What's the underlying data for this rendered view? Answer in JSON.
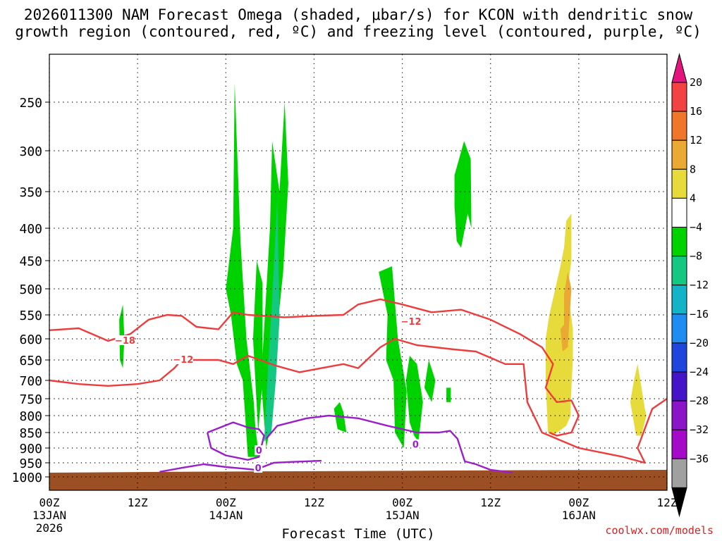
{
  "title_line1": "2026011300 NAM Forecast Omega (shaded, μbar/s) for KCON with dendritic snow",
  "title_line2": "growth region (contoured, red, ºC) and freezing level (contoured, purple, ºC)",
  "credit": "coolwx.com/models",
  "colors": {
    "terrain": "#9c4f22",
    "dgz_contour": "#ee3c3c",
    "freezing_contour": "#9a1fc8",
    "grid": "#000000"
  },
  "chart_data": {
    "type": "heatmap",
    "xlabel": "Forecast Time (UTC)",
    "x_ticks": [
      {
        "hour": 0,
        "label": "00Z",
        "sub": "13JAN",
        "sub2": "2026"
      },
      {
        "hour": 12,
        "label": "12Z",
        "sub": "",
        "sub2": ""
      },
      {
        "hour": 24,
        "label": "00Z",
        "sub": "14JAN",
        "sub2": ""
      },
      {
        "hour": 36,
        "label": "12Z",
        "sub": "",
        "sub2": ""
      },
      {
        "hour": 48,
        "label": "00Z",
        "sub": "15JAN",
        "sub2": ""
      },
      {
        "hour": 60,
        "label": "12Z",
        "sub": "",
        "sub2": ""
      },
      {
        "hour": 72,
        "label": "00Z",
        "sub": "16JAN",
        "sub2": ""
      },
      {
        "hour": 84,
        "label": "12Z",
        "sub": "",
        "sub2": ""
      }
    ],
    "xlim": [
      0,
      84
    ],
    "y_levels": [
      250,
      300,
      350,
      400,
      450,
      500,
      550,
      600,
      650,
      700,
      750,
      800,
      850,
      900,
      950,
      1000
    ],
    "ylim_hpa": [
      200,
      1012
    ],
    "colorbar": {
      "labels": [
        "20",
        "16",
        "12",
        "8",
        "4",
        "−4",
        "−8",
        "−12",
        "−16",
        "−20",
        "−24",
        "−28",
        "−32",
        "−36"
      ],
      "colors": [
        "#f24242",
        "#f0762c",
        "#eaa932",
        "#e6db3a",
        "#ffffff",
        "#00d200",
        "#14c882",
        "#14b4c8",
        "#1e8cf0",
        "#1e46dc",
        "#4614c8",
        "#8c14c8",
        "#a40ac8",
        "#a0a0a0"
      ],
      "top_arrow": "#e3147e",
      "bottom_arrow": "#000000"
    },
    "omega_regions": [
      {
        "fill": "#00d200",
        "points": [
          [
            9.5,
            560
          ],
          [
            10,
            530
          ],
          [
            10.2,
            600
          ],
          [
            10,
            670
          ],
          [
            9.6,
            650
          ]
        ]
      },
      {
        "fill": "#00d200",
        "points": [
          [
            24,
            500
          ],
          [
            25,
            400
          ],
          [
            25.2,
            230
          ],
          [
            26,
            420
          ],
          [
            26.8,
            600
          ],
          [
            27.8,
            760
          ],
          [
            28,
            830
          ],
          [
            28.5,
            930
          ],
          [
            27,
            930
          ],
          [
            26.3,
            700
          ],
          [
            25.5,
            660
          ],
          [
            24.7,
            550
          ]
        ]
      },
      {
        "fill": "#00d200",
        "points": [
          [
            27.7,
            600
          ],
          [
            28.2,
            450
          ],
          [
            29,
            490
          ],
          [
            29,
            700
          ],
          [
            28.4,
            850
          ]
        ]
      },
      {
        "fill": "#00d200",
        "points": [
          [
            28.8,
            700
          ],
          [
            30,
            400
          ],
          [
            30.3,
            290
          ],
          [
            31.3,
            350
          ],
          [
            32,
            250
          ],
          [
            32.5,
            340
          ],
          [
            31.8,
            470
          ],
          [
            31,
            580
          ],
          [
            30.5,
            700
          ],
          [
            30.2,
            820
          ],
          [
            29.5,
            900
          ]
        ]
      },
      {
        "fill": "#14c882",
        "points": [
          [
            29.2,
            880
          ],
          [
            29.8,
            650
          ],
          [
            30.3,
            520
          ],
          [
            31,
            360
          ],
          [
            31.3,
            560
          ],
          [
            30.8,
            700
          ],
          [
            30.2,
            850
          ]
        ]
      },
      {
        "fill": "#00d200",
        "points": [
          [
            38.7,
            780
          ],
          [
            39.5,
            760
          ],
          [
            40,
            790
          ],
          [
            40.4,
            850
          ],
          [
            39.2,
            840
          ]
        ]
      },
      {
        "fill": "#00d200",
        "points": [
          [
            44.8,
            470
          ],
          [
            46.6,
            460
          ],
          [
            47.4,
            600
          ],
          [
            48.6,
            730
          ],
          [
            48.2,
            900
          ],
          [
            47,
            850
          ],
          [
            46.8,
            700
          ],
          [
            45.8,
            650
          ],
          [
            46,
            550
          ]
        ]
      },
      {
        "fill": "#00d200",
        "points": [
          [
            48.5,
            700
          ],
          [
            49,
            640
          ],
          [
            50,
            660
          ],
          [
            50.8,
            760
          ],
          [
            50.2,
            880
          ],
          [
            49.6,
            860
          ],
          [
            49,
            820
          ]
        ]
      },
      {
        "fill": "#00d200",
        "points": [
          [
            51,
            720
          ],
          [
            51.6,
            650
          ],
          [
            52.5,
            700
          ],
          [
            52,
            760
          ]
        ]
      },
      {
        "fill": "#00d200",
        "points": [
          [
            54,
            720
          ],
          [
            54.6,
            720
          ],
          [
            54.6,
            760
          ],
          [
            54,
            760
          ]
        ]
      },
      {
        "fill": "#00d200",
        "points": [
          [
            55.1,
            330
          ],
          [
            56.4,
            290
          ],
          [
            57.3,
            310
          ],
          [
            57.4,
            400
          ],
          [
            56.9,
            380
          ],
          [
            56,
            430
          ],
          [
            55.4,
            420
          ],
          [
            55.1,
            370
          ]
        ]
      },
      {
        "fill": "#e6db3a",
        "points": [
          [
            67.5,
            600
          ],
          [
            68,
            550
          ],
          [
            69.5,
            460
          ],
          [
            70,
            430
          ],
          [
            70.3,
            390
          ],
          [
            71,
            380
          ],
          [
            71,
            450
          ],
          [
            70.5,
            500
          ],
          [
            71.2,
            580
          ],
          [
            71.2,
            650
          ],
          [
            70.9,
            760
          ],
          [
            70.9,
            800
          ],
          [
            70.3,
            830
          ],
          [
            68.5,
            860
          ],
          [
            67.8,
            850
          ],
          [
            67.5,
            700
          ]
        ]
      },
      {
        "fill": "#eaa932",
        "points": [
          [
            69.5,
            580
          ],
          [
            70,
            570
          ],
          [
            70,
            510
          ],
          [
            70.5,
            470
          ],
          [
            71,
            500
          ],
          [
            70.5,
            620
          ],
          [
            69.8,
            630
          ]
        ]
      },
      {
        "fill": "#e6db3a",
        "points": [
          [
            79,
            760
          ],
          [
            79.5,
            700
          ],
          [
            80,
            660
          ],
          [
            81,
            780
          ],
          [
            81.2,
            800
          ],
          [
            80.5,
            860
          ],
          [
            79.8,
            860
          ]
        ]
      }
    ],
    "dgz_contours": [
      {
        "label": "−18",
        "label_at": [
          10.3,
          605
        ],
        "points": [
          [
            0,
            582
          ],
          [
            4,
            578
          ],
          [
            8,
            605
          ],
          [
            11,
            590
          ],
          [
            13.5,
            560
          ],
          [
            16,
            550
          ],
          [
            18,
            552
          ],
          [
            20,
            575
          ],
          [
            23,
            580
          ],
          [
            25,
            545
          ],
          [
            27,
            550
          ],
          [
            32,
            555
          ],
          [
            36,
            552
          ],
          [
            40,
            550
          ],
          [
            42,
            530
          ],
          [
            45,
            520
          ],
          [
            48,
            530
          ],
          [
            52,
            545
          ],
          [
            56,
            540
          ],
          [
            60,
            560
          ],
          [
            64,
            590
          ],
          [
            67,
            620
          ],
          [
            68.5,
            660
          ],
          [
            67.5,
            720
          ],
          [
            69,
            760
          ],
          [
            71,
            755
          ],
          [
            72,
            800
          ],
          [
            71,
            850
          ],
          [
            69,
            860
          ],
          [
            68,
            850
          ]
        ]
      },
      {
        "label": "−12",
        "label_at": [
          18.2,
          650
        ],
        "points": [
          [
            0,
            700
          ],
          [
            4,
            710
          ],
          [
            8,
            715
          ],
          [
            12,
            710
          ],
          [
            15,
            700
          ],
          [
            17,
            670
          ],
          [
            18,
            650
          ],
          [
            20,
            650
          ],
          [
            23,
            650
          ],
          [
            25,
            660
          ],
          [
            27,
            640
          ],
          [
            31,
            665
          ],
          [
            34,
            680
          ],
          [
            37,
            670
          ],
          [
            40,
            660
          ],
          [
            42,
            670
          ],
          [
            45,
            620
          ],
          [
            47,
            600
          ],
          [
            50,
            615
          ],
          [
            55,
            625
          ],
          [
            58,
            630
          ],
          [
            62,
            660
          ],
          [
            64.5,
            660
          ],
          [
            65,
            760
          ],
          [
            67,
            850
          ],
          [
            72,
            900
          ],
          [
            78,
            930
          ],
          [
            81,
            950
          ],
          [
            80,
            900
          ],
          [
            82,
            780
          ],
          [
            84,
            750
          ]
        ]
      },
      {
        "label": "−12",
        "label_at": [
          49.2,
          565
        ],
        "points": []
      }
    ],
    "freezing_contours": [
      {
        "label": "0",
        "label_at": [
          28.5,
          910
        ],
        "points": [
          [
            21.5,
            850
          ],
          [
            25,
            820
          ],
          [
            27,
            835
          ],
          [
            28.5,
            840
          ],
          [
            29.2,
            860
          ],
          [
            28.5,
            930
          ],
          [
            27,
            940
          ],
          [
            24,
            925
          ],
          [
            22,
            900
          ],
          [
            21.5,
            850
          ]
        ]
      },
      {
        "label": "0",
        "label_at": [
          49.8,
          890
        ],
        "points": [
          [
            29.5,
            870
          ],
          [
            31,
            830
          ],
          [
            35,
            808
          ],
          [
            38,
            800
          ],
          [
            42,
            808
          ],
          [
            46,
            830
          ],
          [
            50,
            850
          ],
          [
            53,
            850
          ],
          [
            54.5,
            845
          ],
          [
            55.5,
            870
          ],
          [
            56.5,
            945
          ],
          [
            58,
            955
          ],
          [
            60,
            975
          ],
          [
            63,
            985
          ]
        ]
      },
      {
        "label": "0",
        "label_at": [
          28.4,
          970
        ],
        "points": [
          [
            15,
            982
          ],
          [
            18,
            968
          ],
          [
            21,
            955
          ],
          [
            24,
            965
          ],
          [
            27,
            972
          ],
          [
            28,
            975
          ],
          [
            30.5,
            950
          ],
          [
            33,
            947
          ],
          [
            37,
            943
          ]
        ]
      }
    ],
    "terrain_top_hpa": [
      985,
      982,
      980,
      978,
      976,
      975
    ]
  }
}
